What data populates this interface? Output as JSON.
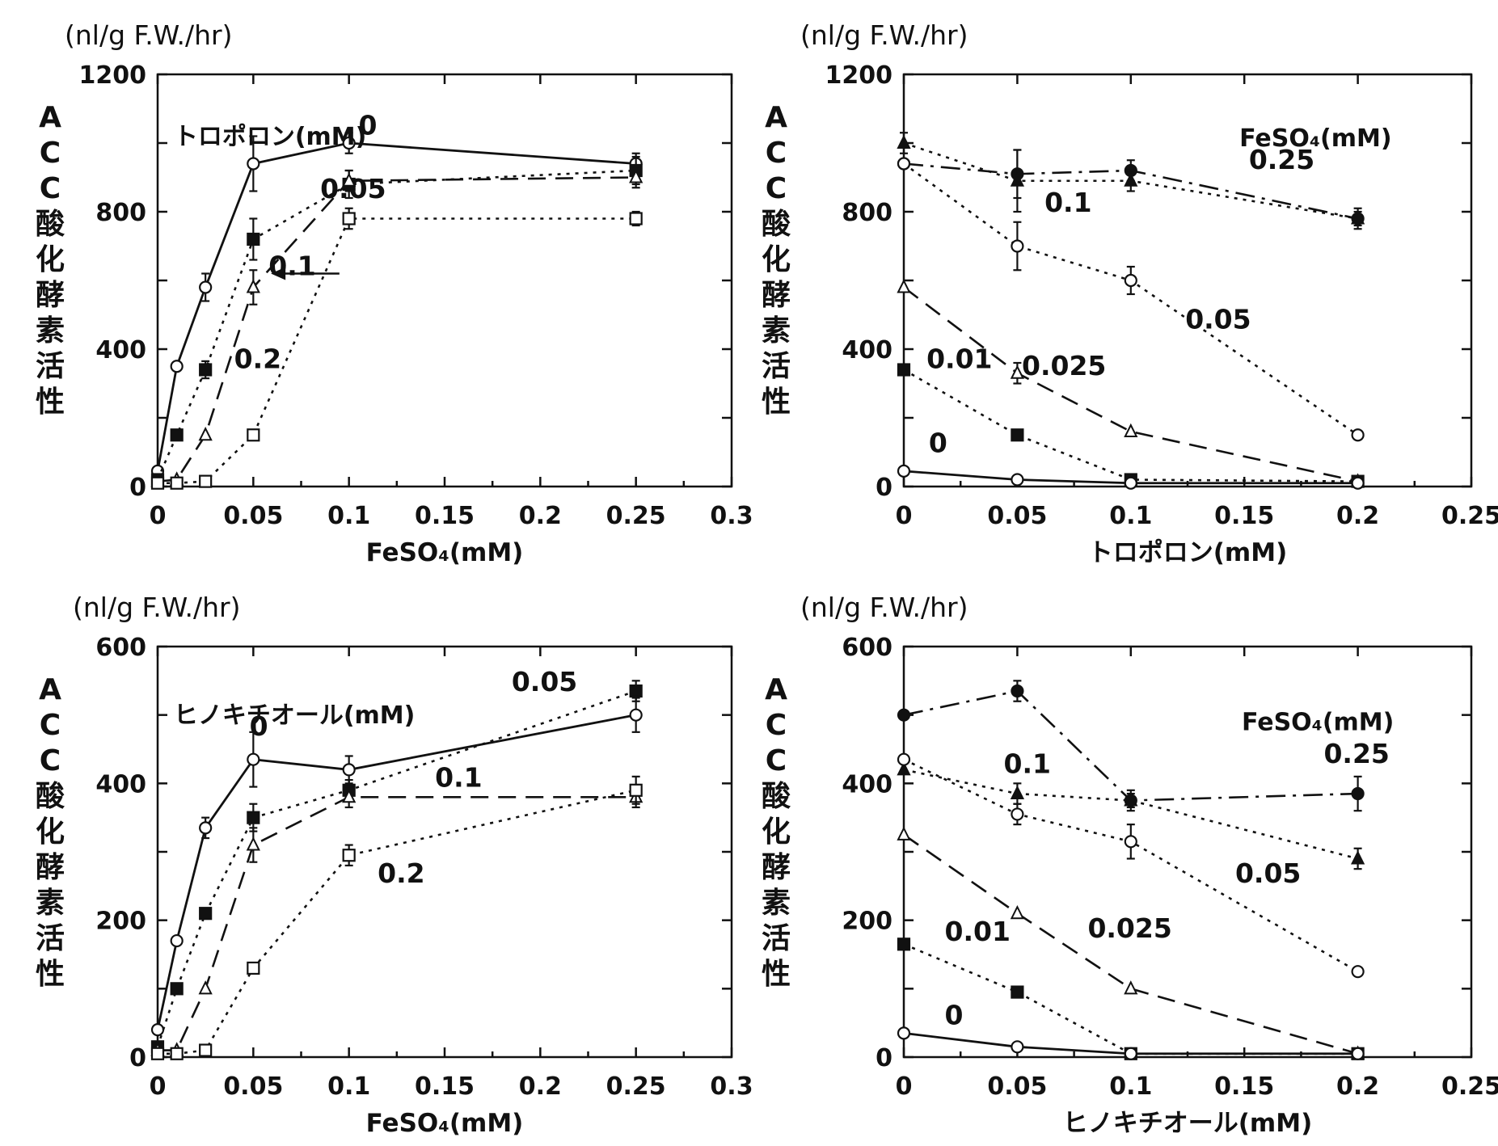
{
  "chart_data": [
    {
      "type": "line",
      "y_unit": "(nl/g F.W./hr)",
      "ylabel": "ACC酸化酵素活性",
      "xlabel": "FeSO₄(mM)",
      "xlim": [
        0,
        0.3
      ],
      "ylim": [
        0,
        1200
      ],
      "xticks": [
        0,
        0.05,
        0.1,
        0.15,
        0.2,
        0.25,
        0.3
      ],
      "yticks": [
        0,
        400,
        800,
        1200
      ],
      "legend_title": "トロポロン(mM)",
      "series": [
        {
          "name": "0",
          "marker": "open-circle",
          "style": "solid",
          "x": [
            0,
            0.01,
            0.025,
            0.05,
            0.1,
            0.25
          ],
          "y": [
            45,
            350,
            580,
            940,
            1000,
            940
          ],
          "err": [
            0,
            0,
            40,
            80,
            30,
            30
          ]
        },
        {
          "name": "0.05",
          "marker": "filled-square",
          "style": "dotted",
          "x": [
            0,
            0.01,
            0.025,
            0.05,
            0.1,
            0.25
          ],
          "y": [
            20,
            150,
            340,
            720,
            880,
            920
          ],
          "err": [
            0,
            0,
            25,
            60,
            40,
            40
          ]
        },
        {
          "name": "0.1",
          "marker": "open-triangle",
          "style": "dashed",
          "x": [
            0,
            0.01,
            0.025,
            0.05,
            0.1,
            0.25
          ],
          "y": [
            15,
            20,
            150,
            580,
            890,
            900
          ],
          "err": [
            0,
            0,
            0,
            50,
            30,
            30
          ]
        },
        {
          "name": "0.2",
          "marker": "open-square",
          "style": "dotted",
          "x": [
            0,
            0.01,
            0.025,
            0.05,
            0.1,
            0.25
          ],
          "y": [
            10,
            10,
            15,
            150,
            780,
            780
          ],
          "err": [
            0,
            0,
            0,
            0,
            30,
            20
          ]
        }
      ]
    },
    {
      "type": "line",
      "y_unit": "(nl/g F.W./hr)",
      "ylabel": "ACC酸化酵素活性",
      "xlabel": "トロポロン(mM)",
      "xlim": [
        0,
        0.25
      ],
      "ylim": [
        0,
        1200
      ],
      "xticks": [
        0,
        0.05,
        0.1,
        0.15,
        0.2,
        0.25
      ],
      "yticks": [
        0,
        400,
        800,
        1200
      ],
      "legend_title": "FeSO₄(mM)",
      "series": [
        {
          "name": "0.25",
          "marker": "filled-circle",
          "style": "dashdot",
          "x": [
            0,
            0.05,
            0.1,
            0.2
          ],
          "y": [
            940,
            910,
            920,
            780
          ],
          "err": [
            0,
            70,
            30,
            30
          ]
        },
        {
          "name": "0.1",
          "marker": "filled-triangle",
          "style": "dotted",
          "x": [
            0,
            0.05,
            0.1,
            0.2
          ],
          "y": [
            1000,
            890,
            890,
            780
          ],
          "err": [
            30,
            90,
            30,
            20
          ]
        },
        {
          "name": "0.05",
          "marker": "open-circle",
          "style": "dotted",
          "x": [
            0,
            0.05,
            0.1,
            0.2
          ],
          "y": [
            940,
            700,
            600,
            150
          ],
          "err": [
            0,
            70,
            40,
            0
          ]
        },
        {
          "name": "0.025",
          "marker": "open-triangle",
          "style": "dashed",
          "x": [
            0,
            0.05,
            0.1,
            0.2
          ],
          "y": [
            580,
            330,
            160,
            15
          ],
          "err": [
            0,
            30,
            0,
            0
          ]
        },
        {
          "name": "0.01",
          "marker": "filled-square",
          "style": "dotted",
          "x": [
            0,
            0.05,
            0.1,
            0.2
          ],
          "y": [
            340,
            150,
            20,
            15
          ],
          "err": [
            0,
            0,
            0,
            0
          ]
        },
        {
          "name": "0",
          "marker": "open-circle",
          "style": "solid",
          "x": [
            0,
            0.05,
            0.1,
            0.2
          ],
          "y": [
            45,
            20,
            10,
            10
          ],
          "err": [
            0,
            0,
            0,
            0
          ]
        }
      ]
    },
    {
      "type": "line",
      "y_unit": "(nl/g F.W./hr)",
      "ylabel": "ACC酸化酵素活性",
      "xlabel": "FeSO₄(mM)",
      "xlim": [
        0,
        0.3
      ],
      "ylim": [
        0,
        600
      ],
      "xticks": [
        0,
        0.05,
        0.1,
        0.15,
        0.2,
        0.25,
        0.3
      ],
      "yticks": [
        0,
        200,
        400,
        600
      ],
      "legend_title": "ヒノキチオール(mM)",
      "series": [
        {
          "name": "0",
          "marker": "open-circle",
          "style": "solid",
          "x": [
            0,
            0.01,
            0.025,
            0.05,
            0.1,
            0.25
          ],
          "y": [
            40,
            170,
            335,
            435,
            420,
            500
          ],
          "err": [
            0,
            0,
            15,
            40,
            20,
            25
          ]
        },
        {
          "name": "0.05",
          "marker": "filled-square",
          "style": "dotted",
          "x": [
            0,
            0.01,
            0.025,
            0.05,
            0.1,
            0.25
          ],
          "y": [
            15,
            100,
            210,
            350,
            390,
            535
          ],
          "err": [
            0,
            0,
            0,
            20,
            15,
            15
          ]
        },
        {
          "name": "0.1",
          "marker": "open-triangle",
          "style": "dashed",
          "x": [
            0,
            0.01,
            0.025,
            0.05,
            0.1,
            0.25
          ],
          "y": [
            10,
            10,
            100,
            310,
            380,
            380
          ],
          "err": [
            0,
            0,
            0,
            25,
            15,
            15
          ]
        },
        {
          "name": "0.2",
          "marker": "open-square",
          "style": "dotted",
          "x": [
            0,
            0.01,
            0.025,
            0.05,
            0.1,
            0.25
          ],
          "y": [
            5,
            5,
            10,
            130,
            295,
            390
          ],
          "err": [
            0,
            0,
            0,
            0,
            15,
            20
          ]
        }
      ]
    },
    {
      "type": "line",
      "y_unit": "(nl/g F.W./hr)",
      "ylabel": "ACC酸化酵素活性",
      "xlabel": "ヒノキチオール(mM)",
      "xlim": [
        0,
        0.25
      ],
      "ylim": [
        0,
        600
      ],
      "xticks": [
        0,
        0.05,
        0.1,
        0.15,
        0.2,
        0.25
      ],
      "yticks": [
        0,
        200,
        400,
        600
      ],
      "legend_title": "FeSO₄(mM)",
      "series": [
        {
          "name": "0.25",
          "marker": "filled-circle",
          "style": "dashdot",
          "x": [
            0,
            0.05,
            0.1,
            0.2
          ],
          "y": [
            500,
            535,
            375,
            385
          ],
          "err": [
            0,
            15,
            15,
            25
          ]
        },
        {
          "name": "0.1",
          "marker": "filled-triangle",
          "style": "dotted",
          "x": [
            0,
            0.05,
            0.1,
            0.2
          ],
          "y": [
            420,
            385,
            375,
            290
          ],
          "err": [
            0,
            15,
            10,
            15
          ]
        },
        {
          "name": "0.05",
          "marker": "open-circle",
          "style": "dotted",
          "x": [
            0,
            0.05,
            0.1,
            0.2
          ],
          "y": [
            435,
            355,
            315,
            125
          ],
          "err": [
            0,
            15,
            25,
            0
          ]
        },
        {
          "name": "0.025",
          "marker": "open-triangle",
          "style": "dashed",
          "x": [
            0,
            0.05,
            0.1,
            0.2
          ],
          "y": [
            325,
            210,
            100,
            5
          ],
          "err": [
            0,
            0,
            0,
            0
          ]
        },
        {
          "name": "0.01",
          "marker": "filled-square",
          "style": "dotted",
          "x": [
            0,
            0.05,
            0.1,
            0.2
          ],
          "y": [
            165,
            95,
            5,
            5
          ],
          "err": [
            0,
            0,
            0,
            0
          ]
        },
        {
          "name": "0",
          "marker": "open-circle",
          "style": "solid",
          "x": [
            0,
            0.05,
            0.1,
            0.2
          ],
          "y": [
            35,
            15,
            5,
            5
          ],
          "err": [
            0,
            0,
            0,
            0
          ]
        }
      ]
    }
  ]
}
